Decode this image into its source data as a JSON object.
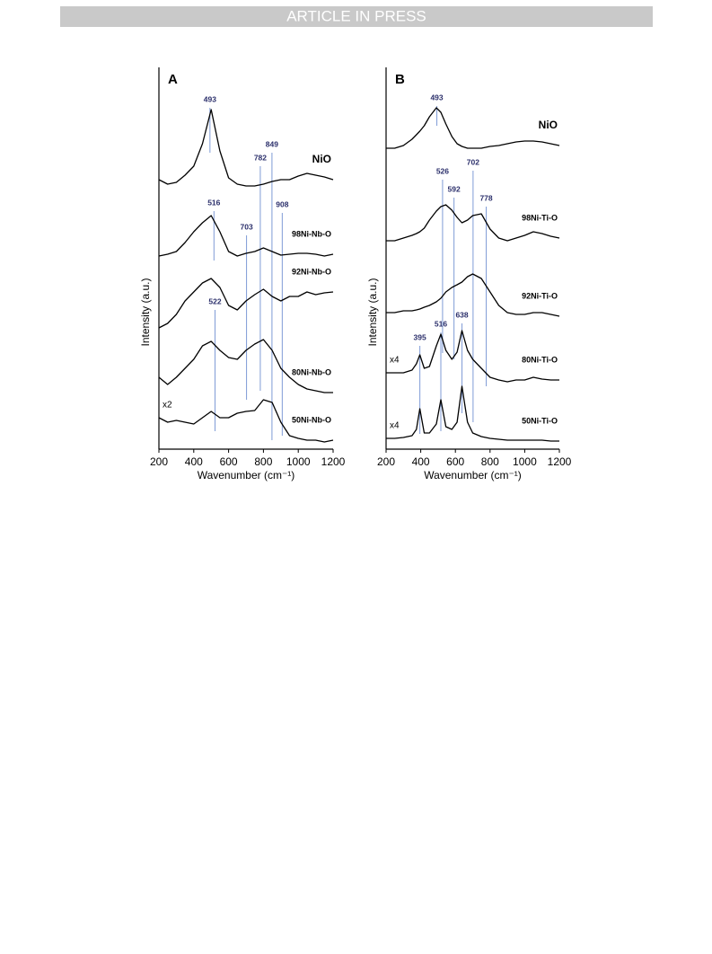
{
  "header": {
    "banner": "ARTICLE IN PRESS"
  },
  "chart_data": [
    {
      "type": "line",
      "title": "A",
      "xlabel": "Wavenumber (cm⁻¹)",
      "ylabel": "Intensity (a.u.)",
      "xlim": [
        200,
        1200
      ],
      "xticks": [
        200,
        400,
        600,
        800,
        1000,
        1200
      ],
      "ylim": [
        0,
        425
      ],
      "x": [
        200,
        250,
        300,
        350,
        400,
        450,
        500,
        550,
        600,
        650,
        700,
        750,
        800,
        850,
        900,
        950,
        1000,
        1050,
        1100,
        1150,
        1200
      ],
      "series": [
        {
          "name": "NiO",
          "color": "#000000",
          "values": [
            300,
            295,
            297,
            305,
            315,
            340,
            378,
            332,
            302,
            295,
            293,
            293,
            295,
            298,
            300,
            300,
            304,
            307,
            305,
            303,
            300
          ]
        },
        {
          "name": "98Ni-Nb-O",
          "color": "#000000",
          "values": [
            215,
            217,
            220,
            230,
            242,
            252,
            260,
            242,
            220,
            215,
            218,
            220,
            224,
            220,
            216,
            217,
            218,
            218,
            217,
            215,
            217
          ]
        },
        {
          "name": "92Ni-Nb-O",
          "color": "#000000",
          "values": [
            135,
            140,
            150,
            165,
            175,
            185,
            190,
            180,
            160,
            155,
            165,
            172,
            178,
            170,
            165,
            170,
            170,
            175,
            172,
            174,
            175
          ]
        },
        {
          "name": "80Ni-Nb-O",
          "color": "#000000",
          "values": [
            80,
            72,
            80,
            90,
            100,
            115,
            120,
            110,
            102,
            100,
            110,
            117,
            122,
            110,
            90,
            80,
            72,
            67,
            65,
            63,
            63
          ]
        },
        {
          "name": "50Ni-Nb-O",
          "color": "#000000",
          "multiplier": "x2",
          "values": [
            35,
            30,
            32,
            30,
            28,
            35,
            42,
            35,
            35,
            40,
            42,
            43,
            55,
            52,
            30,
            15,
            12,
            10,
            10,
            8,
            10
          ]
        }
      ],
      "annotations": [
        {
          "value": 493,
          "ymin": 330,
          "ymax": 380
        },
        {
          "value": 782,
          "ymin": 65,
          "ymax": 315
        },
        {
          "value": 849,
          "ymin": 10,
          "ymax": 330
        },
        {
          "value": 516,
          "ymin": 210,
          "ymax": 265
        },
        {
          "value": 703,
          "ymin": 55,
          "ymax": 238
        },
        {
          "value": 908,
          "ymin": 15,
          "ymax": 263
        },
        {
          "value": 522,
          "ymin": 20,
          "ymax": 155
        }
      ],
      "annotation_color": "#7f9bd6"
    },
    {
      "type": "line",
      "title": "B",
      "xlabel": "Wavenumber (cm⁻¹)",
      "ylabel": "Intensity (a.u.)",
      "xlim": [
        200,
        1200
      ],
      "xticks": [
        200,
        400,
        600,
        800,
        1000,
        1200
      ],
      "ylim": [
        0,
        425
      ],
      "x": [
        200,
        250,
        300,
        350,
        375,
        395,
        420,
        450,
        490,
        516,
        545,
        580,
        610,
        638,
        670,
        700,
        750,
        800,
        850,
        900,
        950,
        1000,
        1050,
        1100,
        1150,
        1200
      ],
      "series": [
        {
          "name": "NiO",
          "color": "#000000",
          "values": [
            335,
            335,
            338,
            345,
            350,
            354,
            360,
            370,
            380,
            375,
            362,
            348,
            340,
            337,
            335,
            335,
            335,
            337,
            338,
            340,
            342,
            343,
            343,
            342,
            340,
            338
          ]
        },
        {
          "name": "98Ni-Ti-O",
          "color": "#000000",
          "values": [
            232,
            232,
            235,
            238,
            240,
            242,
            246,
            255,
            265,
            270,
            272,
            266,
            258,
            252,
            255,
            260,
            262,
            245,
            235,
            232,
            235,
            238,
            242,
            240,
            237,
            235
          ]
        },
        {
          "name": "92Ni-Ti-O",
          "color": "#000000",
          "values": [
            152,
            152,
            154,
            154,
            155,
            156,
            158,
            160,
            164,
            168,
            175,
            180,
            183,
            186,
            192,
            195,
            190,
            175,
            160,
            152,
            150,
            150,
            152,
            152,
            150,
            148
          ]
        },
        {
          "name": "80Ni-Ti-O",
          "color": "#000000",
          "multiplier": "x4",
          "values": [
            85,
            85,
            85,
            88,
            95,
            105,
            90,
            92,
            115,
            128,
            110,
            100,
            108,
            132,
            110,
            100,
            90,
            80,
            77,
            75,
            77,
            77,
            80,
            78,
            77,
            77
          ]
        },
        {
          "name": "50Ni-Ti-O",
          "color": "#000000",
          "multiplier": "x4",
          "values": [
            12,
            12,
            13,
            15,
            22,
            45,
            18,
            18,
            28,
            55,
            25,
            22,
            30,
            70,
            30,
            18,
            14,
            12,
            11,
            10,
            10,
            10,
            10,
            10,
            9,
            9
          ]
        }
      ],
      "annotations": [
        {
          "value": 493,
          "ymin": 360,
          "ymax": 382
        },
        {
          "value": 526,
          "ymin": 107,
          "ymax": 300
        },
        {
          "value": 592,
          "ymin": 100,
          "ymax": 280
        },
        {
          "value": 702,
          "ymin": 30,
          "ymax": 310
        },
        {
          "value": 778,
          "ymin": 70,
          "ymax": 270
        },
        {
          "value": 395,
          "ymin": 17,
          "ymax": 115
        },
        {
          "value": 516,
          "ymin": 20,
          "ymax": 130
        },
        {
          "value": 638,
          "ymin": 40,
          "ymax": 140
        }
      ],
      "annotation_color": "#7f9bd6"
    }
  ]
}
